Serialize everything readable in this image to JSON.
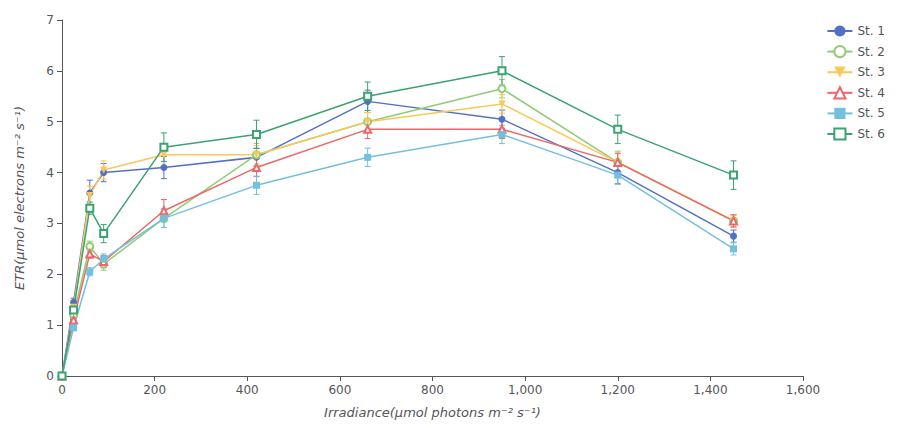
{
  "chart_data": {
    "type": "line",
    "xlabel": "Irradiance(μmol photons m⁻² s⁻¹)",
    "ylabel": "ETR(μmol electrons m⁻² s⁻¹)",
    "x": [
      0,
      25,
      60,
      90,
      220,
      420,
      660,
      950,
      1200,
      1450
    ],
    "series": [
      {
        "name": "St. 1",
        "marker": "filled_circle",
        "values": [
          0.0,
          1.45,
          3.6,
          4.0,
          4.1,
          4.3,
          5.4,
          5.05,
          4.0,
          2.75
        ],
        "yerr": [
          0.0,
          0.08,
          0.25,
          0.18,
          0.22,
          0.18,
          0.22,
          0.18,
          0.22,
          0.12
        ]
      },
      {
        "name": "St. 2",
        "marker": "open_circle",
        "values": [
          0.0,
          1.2,
          2.55,
          2.2,
          3.1,
          4.35,
          5.0,
          5.65,
          4.2,
          3.05
        ],
        "yerr": [
          0.0,
          0.06,
          0.1,
          0.12,
          0.18,
          0.22,
          0.18,
          0.18,
          0.22,
          0.12
        ]
      },
      {
        "name": "St. 3",
        "marker": "filled_triangle_down",
        "values": [
          0.0,
          1.35,
          3.55,
          4.05,
          4.35,
          4.35,
          5.0,
          5.35,
          4.2,
          3.05
        ],
        "yerr": [
          0.0,
          0.07,
          0.18,
          0.18,
          0.22,
          0.18,
          0.18,
          0.18,
          0.18,
          0.12
        ]
      },
      {
        "name": "St. 4",
        "marker": "open_triangle_up",
        "values": [
          0.0,
          1.1,
          2.4,
          2.25,
          3.25,
          4.1,
          4.85,
          4.85,
          4.2,
          3.05
        ],
        "yerr": [
          0.0,
          0.06,
          0.08,
          0.12,
          0.22,
          0.18,
          0.18,
          0.18,
          0.18,
          0.12
        ]
      },
      {
        "name": "St. 5",
        "marker": "filled_square",
        "values": [
          0.0,
          0.95,
          2.05,
          2.3,
          3.1,
          3.75,
          4.3,
          4.75,
          3.95,
          2.5
        ],
        "yerr": [
          0.0,
          0.06,
          0.08,
          0.1,
          0.18,
          0.18,
          0.18,
          0.18,
          0.18,
          0.12
        ]
      },
      {
        "name": "St. 6",
        "marker": "open_square",
        "values": [
          0.0,
          1.3,
          3.3,
          2.8,
          4.5,
          4.75,
          5.5,
          6.0,
          4.85,
          3.95
        ],
        "yerr": [
          0.0,
          0.07,
          0.12,
          0.18,
          0.28,
          0.28,
          0.28,
          0.28,
          0.28,
          0.28
        ]
      }
    ],
    "xlim": [
      0,
      1600
    ],
    "ylim": [
      0,
      7
    ],
    "xticks": [
      0,
      200,
      400,
      600,
      800,
      1000,
      1200,
      1400,
      1600
    ],
    "yticks": [
      0,
      1,
      2,
      3,
      4,
      5,
      6,
      7
    ],
    "grid": false,
    "legend": "upper right"
  }
}
